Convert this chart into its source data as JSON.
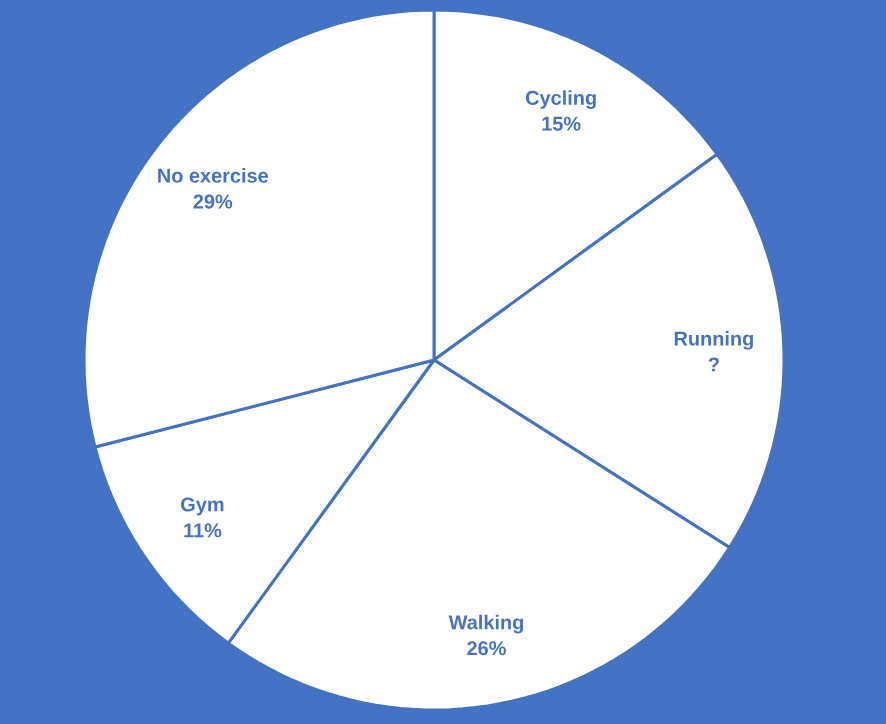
{
  "chart_data": {
    "type": "pie",
    "categories": [
      "Cycling",
      "Running",
      "Walking",
      "Gym",
      "No exercise"
    ],
    "values": [
      15,
      19,
      26,
      11,
      29
    ],
    "value_labels": [
      "15%",
      "?",
      "26%",
      "11%",
      "29%"
    ],
    "colors": [
      "#ffffff",
      "#ffffff",
      "#ffffff",
      "#ffffff",
      "#ffffff"
    ]
  }
}
